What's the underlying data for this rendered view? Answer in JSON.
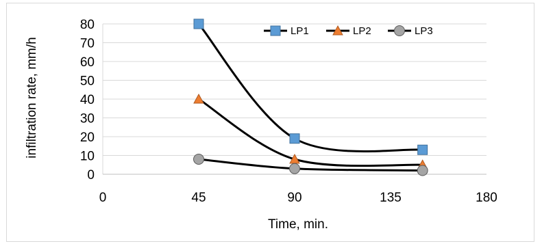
{
  "chart_data": {
    "type": "line",
    "title": "",
    "xlabel": "Time, min.",
    "ylabel": "infiltration rate, mm/h",
    "xlim": [
      0,
      180
    ],
    "ylim": [
      0,
      80
    ],
    "x_ticks": [
      "0",
      "45",
      "90",
      "135",
      "180"
    ],
    "y_ticks": [
      "0",
      "10",
      "20",
      "30",
      "40",
      "50",
      "60",
      "70",
      "80"
    ],
    "grid": "horizontal",
    "legend_position": "top-right",
    "smooth": true,
    "series": [
      {
        "name": "LP1",
        "marker": "square",
        "color": "#5b9bd5",
        "x": [
          45,
          90,
          150
        ],
        "y": [
          80,
          19,
          13
        ]
      },
      {
        "name": "LP2",
        "marker": "triangle",
        "color": "#ed7d31",
        "x": [
          45,
          90,
          150
        ],
        "y": [
          40,
          8,
          5
        ]
      },
      {
        "name": "LP3",
        "marker": "circle",
        "color": "#a5a5a5",
        "x": [
          45,
          90,
          150
        ],
        "y": [
          8,
          3,
          2
        ]
      }
    ]
  }
}
